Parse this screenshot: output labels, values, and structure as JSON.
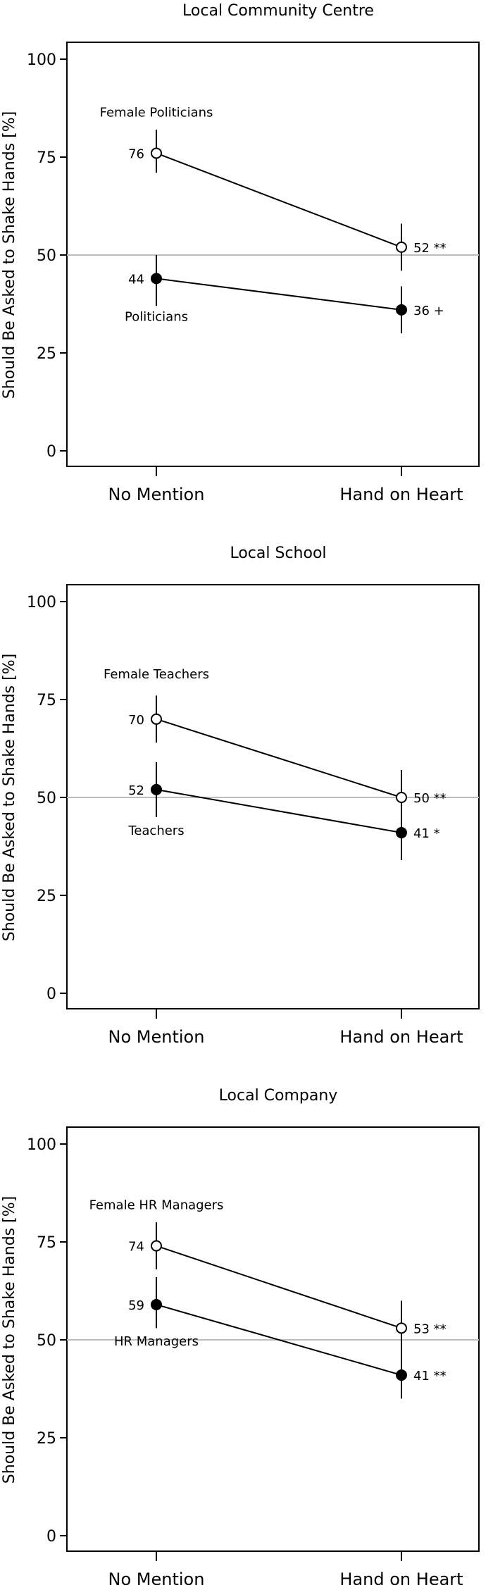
{
  "chart_data": [
    {
      "type": "line",
      "title": "Local Community Centre",
      "ylabel": "Should Be Asked to Shake Hands [%]",
      "ylim": [
        0,
        100
      ],
      "yticks": [
        0,
        25,
        50,
        75,
        100
      ],
      "categories": [
        "No Mention",
        "Hand on Heart"
      ],
      "reference_line": 50,
      "series": [
        {
          "name": "Female Politicians",
          "marker": "open",
          "values": [
            76,
            52
          ],
          "ci_low": [
            71,
            46
          ],
          "ci_high": [
            82,
            58
          ],
          "labels": [
            "76",
            "52 **"
          ]
        },
        {
          "name": "Politicians",
          "marker": "filled",
          "values": [
            44,
            36
          ],
          "ci_low": [
            37,
            30
          ],
          "ci_high": [
            50,
            42
          ],
          "labels": [
            "44",
            "36 +"
          ]
        }
      ]
    },
    {
      "type": "line",
      "title": "Local School",
      "ylabel": "Should Be Asked to Shake Hands [%]",
      "ylim": [
        0,
        100
      ],
      "yticks": [
        0,
        25,
        50,
        75,
        100
      ],
      "categories": [
        "No Mention",
        "Hand on Heart"
      ],
      "reference_line": 50,
      "series": [
        {
          "name": "Female Teachers",
          "marker": "open",
          "values": [
            70,
            50
          ],
          "ci_low": [
            64,
            44
          ],
          "ci_high": [
            76,
            57
          ],
          "labels": [
            "70",
            "50 **"
          ]
        },
        {
          "name": "Teachers",
          "marker": "filled",
          "values": [
            52,
            41
          ],
          "ci_low": [
            45,
            34
          ],
          "ci_high": [
            59,
            48
          ],
          "labels": [
            "52",
            "41 *"
          ]
        }
      ]
    },
    {
      "type": "line",
      "title": "Local Company",
      "ylabel": "Should Be Asked to Shake Hands [%]",
      "ylim": [
        0,
        100
      ],
      "yticks": [
        0,
        25,
        50,
        75,
        100
      ],
      "categories": [
        "No Mention",
        "Hand on Heart"
      ],
      "reference_line": 50,
      "series": [
        {
          "name": "Female HR Managers",
          "marker": "open",
          "values": [
            74,
            53
          ],
          "ci_low": [
            68,
            46
          ],
          "ci_high": [
            80,
            60
          ],
          "labels": [
            "74",
            "53 **"
          ]
        },
        {
          "name": "HR Managers",
          "marker": "filled",
          "values": [
            59,
            41
          ],
          "ci_low": [
            53,
            35
          ],
          "ci_high": [
            66,
            48
          ],
          "labels": [
            "59",
            "41 **"
          ]
        }
      ]
    }
  ]
}
